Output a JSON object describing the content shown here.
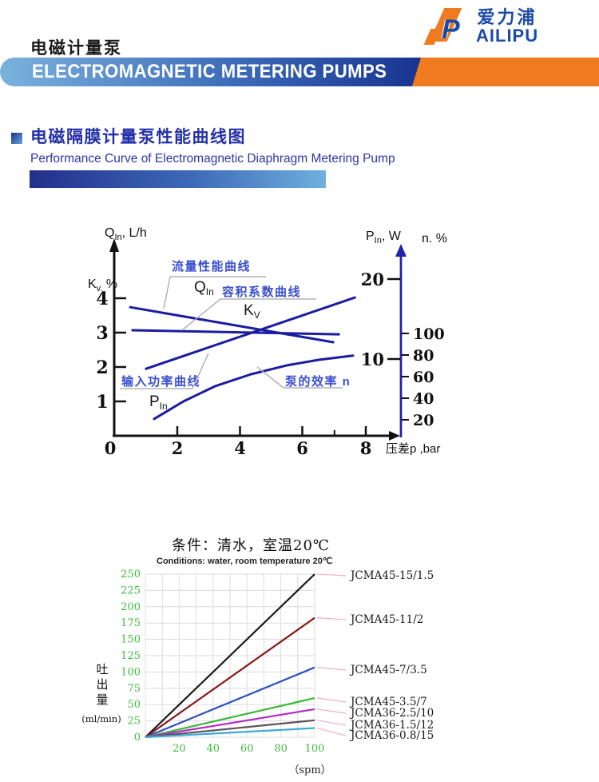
{
  "header": {
    "page_title_cn": "电磁计量泵",
    "banner_text": "ELECTROMAGNETIC METERING PUMPS",
    "logo_cn": "爱力浦",
    "logo_en": "AILIPU"
  },
  "section": {
    "title_cn": "电磁隔膜计量泵性能曲线图",
    "title_en": "Performance Curve of Electromagnetic Diaphragm Metering Pump"
  },
  "colors": {
    "accent_blue": "#2330a9",
    "banner_blue_dark": "#16318e",
    "banner_blue_light": "#7ab2dd",
    "banner_orange": "#f07a20",
    "curve_blue": "#1c1ca0",
    "callout_blue": "#3a4fd0",
    "axis_black": "#111111",
    "grid_gray": "#dcdcdc",
    "tick_green": "#3dbb3d",
    "leader_pink": "#f2b3c0",
    "logo_blue": "#1b4aa8"
  },
  "chart_data": [
    {
      "type": "line",
      "title": "电磁隔膜计量泵性能曲线图",
      "x_axis": {
        "label": "压差p ,bar",
        "ticks": [
          0,
          2,
          4,
          6,
          8
        ],
        "minor_tick": 7,
        "range": [
          0,
          8.8
        ]
      },
      "left_axis": {
        "title_main": "Q",
        "title_sub": "In",
        "title_rest": ", L/h",
        "label_main": "K",
        "label_sub": "v.",
        "label_rest": " %",
        "ticks": [
          4,
          3,
          2,
          1
        ]
      },
      "right_axis": {
        "p_label_main": "P",
        "p_label_sub": "In",
        "p_label_rest": ", W",
        "p_ticks": [
          20,
          10
        ],
        "n_label": "n. %",
        "n_ticks": [
          100,
          80,
          60,
          40,
          20
        ]
      },
      "series": [
        {
          "name": "QIn-flow-curve",
          "points": [
            [
              0.51,
              3.74
            ],
            [
              6.96,
              2.72
            ]
          ]
        },
        {
          "name": "Kv-volumetric-coefficient",
          "points": [
            [
              0.58,
              3.07
            ],
            [
              7.14,
              2.95
            ]
          ]
        },
        {
          "name": "PIn-input-power",
          "points": [
            [
              1.01,
              1.95
            ],
            [
              7.65,
              4.02
            ]
          ]
        },
        {
          "name": "n-pump-efficiency",
          "points": [
            [
              1.27,
              0.49
            ],
            [
              2.2,
              1.0
            ],
            [
              3.2,
              1.44
            ],
            [
              4.35,
              1.79
            ],
            [
              5.49,
              2.05
            ],
            [
              6.5,
              2.21
            ],
            [
              7.59,
              2.33
            ]
          ]
        }
      ],
      "callouts": [
        {
          "label": "流量性能曲线",
          "sub_main": "Q",
          "sub_sub": "In"
        },
        {
          "label": "容积系数曲线",
          "sub_main": "K",
          "sub_sub": "V"
        },
        {
          "label": "输入功率曲线",
          "sub_main": "P",
          "sub_sub": "In"
        },
        {
          "label": "泵的效率 n",
          "sub_main": "",
          "sub_sub": ""
        }
      ]
    },
    {
      "type": "line",
      "title_cn": "条件：清水，室温20℃",
      "title_en": "Conditions: water, room temperature 20℃",
      "ylabel": "吐出量",
      "ylabel_unit": "(ml/min)",
      "xlabel_unit": "（spm）",
      "x_ticks": [
        20,
        40,
        60,
        80,
        100
      ],
      "y_ticks": [
        0,
        25,
        50,
        75,
        100,
        125,
        150,
        175,
        200,
        225,
        250
      ],
      "x_range": [
        0,
        100
      ],
      "y_range": [
        0,
        250
      ],
      "grid": true,
      "legend_position": "right",
      "series": [
        {
          "name": "JCMA45-15/1.5",
          "color": "#1a1a1a",
          "x": [
            0,
            100
          ],
          "y": [
            0,
            250
          ]
        },
        {
          "name": "JCMA45-11/2",
          "color": "#8b1518",
          "x": [
            0,
            100
          ],
          "y": [
            0,
            183
          ]
        },
        {
          "name": "JCMA45-7/3.5",
          "color": "#2a4fc0",
          "x": [
            0,
            100
          ],
          "y": [
            0,
            107
          ]
        },
        {
          "name": "JCMA45-3.5/7",
          "color": "#3cb83c",
          "x": [
            0,
            100
          ],
          "y": [
            0,
            60
          ]
        },
        {
          "name": "JCMA36-2.5/10",
          "color": "#b02fc0",
          "x": [
            0,
            100
          ],
          "y": [
            0,
            43
          ]
        },
        {
          "name": "JCMA36-1.5/12",
          "color": "#5d5257",
          "x": [
            0,
            100
          ],
          "y": [
            0,
            26
          ]
        },
        {
          "name": "JCMA36-0.8/15",
          "color": "#3fa9d6",
          "x": [
            0,
            100
          ],
          "y": [
            0,
            14
          ]
        }
      ]
    }
  ]
}
